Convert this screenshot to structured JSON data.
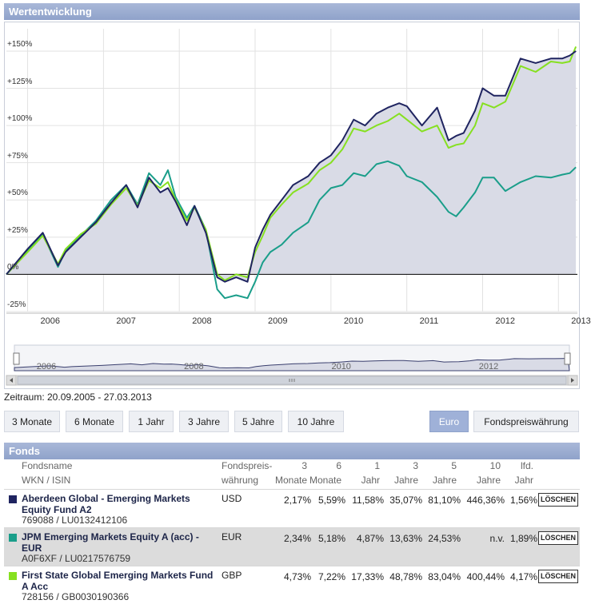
{
  "header": {
    "title": "Wertentwicklung"
  },
  "chart_data": {
    "type": "line",
    "ylim": [
      -25,
      165
    ],
    "yticks": [
      "+150%",
      "+125%",
      "+100%",
      "+75%",
      "+50%",
      "+25%",
      "0%",
      "-25%"
    ],
    "ytick_values": [
      150,
      125,
      100,
      75,
      50,
      25,
      0,
      -25
    ],
    "x_years": [
      "2006",
      "2007",
      "2008",
      "2009",
      "2010",
      "2011",
      "2012",
      "2013"
    ],
    "navigator_years": [
      "2006",
      "2008",
      "2010",
      "2012"
    ],
    "series": [
      {
        "name": "Aberdeen Global - Emerging Markets Equity Fund A2",
        "color": "#1f2460",
        "x": [
          2005.72,
          2006.0,
          2006.2,
          2006.4,
          2006.5,
          2006.7,
          2006.9,
          2007.1,
          2007.3,
          2007.45,
          2007.6,
          2007.75,
          2007.85,
          2007.95,
          2008.1,
          2008.2,
          2008.35,
          2008.5,
          2008.6,
          2008.75,
          2008.9,
          2009.0,
          2009.1,
          2009.2,
          2009.35,
          2009.5,
          2009.7,
          2009.85,
          2010.0,
          2010.15,
          2010.3,
          2010.45,
          2010.6,
          2010.75,
          2010.9,
          2011.0,
          2011.2,
          2011.4,
          2011.55,
          2011.65,
          2011.75,
          2011.9,
          2012.0,
          2012.15,
          2012.3,
          2012.5,
          2012.7,
          2012.9,
          2013.05,
          2013.15,
          2013.23
        ],
        "values": [
          0,
          17,
          28,
          6,
          15,
          25,
          35,
          48,
          60,
          45,
          65,
          55,
          58,
          49,
          33,
          46,
          28,
          -2,
          -5,
          -2,
          -5,
          18,
          30,
          40,
          50,
          60,
          66,
          75,
          80,
          90,
          104,
          100,
          108,
          112,
          115,
          113,
          100,
          112,
          90,
          93,
          95,
          110,
          125,
          120,
          120,
          145,
          142,
          145,
          145,
          147,
          150
        ]
      },
      {
        "name": "JPM Emerging Markets Equity A (acc) - EUR",
        "color": "#1a9e8a",
        "x": [
          2005.72,
          2006.0,
          2006.2,
          2006.4,
          2006.5,
          2006.7,
          2006.9,
          2007.1,
          2007.3,
          2007.45,
          2007.6,
          2007.75,
          2007.85,
          2007.95,
          2008.1,
          2008.2,
          2008.35,
          2008.5,
          2008.6,
          2008.75,
          2008.9,
          2009.0,
          2009.1,
          2009.2,
          2009.35,
          2009.5,
          2009.7,
          2009.85,
          2010.0,
          2010.15,
          2010.3,
          2010.45,
          2010.6,
          2010.75,
          2010.9,
          2011.0,
          2011.2,
          2011.4,
          2011.55,
          2011.65,
          2011.75,
          2011.9,
          2012.0,
          2012.15,
          2012.3,
          2012.5,
          2012.7,
          2012.9,
          2013.05,
          2013.15,
          2013.23
        ],
        "values": [
          0,
          16,
          27,
          5,
          16,
          26,
          36,
          50,
          60,
          47,
          68,
          60,
          70,
          52,
          38,
          46,
          30,
          -10,
          -16,
          -14,
          -16,
          -5,
          8,
          15,
          20,
          28,
          35,
          50,
          58,
          60,
          68,
          66,
          74,
          76,
          73,
          66,
          62,
          52,
          42,
          39,
          45,
          55,
          65,
          65,
          56,
          62,
          66,
          65,
          67,
          68,
          72
        ]
      },
      {
        "name": "First State Global Emerging Markets Fund A Acc",
        "color": "#86e020",
        "x": [
          2005.72,
          2006.0,
          2006.2,
          2006.4,
          2006.5,
          2006.7,
          2006.9,
          2007.1,
          2007.3,
          2007.45,
          2007.6,
          2007.75,
          2007.85,
          2007.95,
          2008.1,
          2008.2,
          2008.35,
          2008.5,
          2008.6,
          2008.75,
          2008.9,
          2009.0,
          2009.1,
          2009.2,
          2009.35,
          2009.5,
          2009.7,
          2009.85,
          2010.0,
          2010.15,
          2010.3,
          2010.45,
          2010.6,
          2010.75,
          2010.9,
          2011.0,
          2011.2,
          2011.4,
          2011.55,
          2011.65,
          2011.75,
          2011.9,
          2012.0,
          2012.15,
          2012.3,
          2012.5,
          2012.7,
          2012.9,
          2013.05,
          2013.15,
          2013.23
        ],
        "values": [
          0,
          15,
          26,
          7,
          17,
          27,
          34,
          47,
          58,
          46,
          63,
          58,
          62,
          50,
          36,
          45,
          30,
          0,
          -4,
          0,
          -2,
          15,
          26,
          38,
          47,
          55,
          61,
          70,
          75,
          84,
          98,
          96,
          100,
          103,
          108,
          104,
          96,
          100,
          85,
          87,
          88,
          100,
          115,
          112,
          116,
          140,
          136,
          143,
          142,
          143,
          153
        ]
      }
    ]
  },
  "zeitraum": "Zeitraum: 20.09.2005 - 27.03.2013",
  "range_buttons": [
    "3 Monate",
    "6 Monate",
    "1 Jahr",
    "3 Jahre",
    "5 Jahre",
    "10 Jahre"
  ],
  "currency_buttons": {
    "euro": "Euro",
    "fund": "Fondspreiswährung"
  },
  "fonds": {
    "title": "Fonds",
    "headers": {
      "name1": "Fondsname",
      "name2": "WKN / ISIN",
      "curr1": "Fondspreis-",
      "curr2": "währung",
      "m3a": "3",
      "m3b": "Monate",
      "m6a": "6",
      "m6b": "Monate",
      "y1a": "1",
      "y1b": "Jahr",
      "y3a": "3",
      "y3b": "Jahre",
      "y5a": "5",
      "y5b": "Jahre",
      "y10a": "10",
      "y10b": "Jahre",
      "lfda": "lfd.",
      "lfdb": "Jahr"
    },
    "rows": [
      {
        "name": "Aberdeen Global - Emerging Markets Equity Fund A2",
        "isin": "769088 / LU0132412106",
        "currency": "USD",
        "m3": "2,17%",
        "m6": "5,59%",
        "y1": "11,58%",
        "y3": "35,07%",
        "y5": "81,10%",
        "y10": "446,36%",
        "lfd": "1,56%",
        "color": "#1f2460",
        "delete": "LÖSCHEN"
      },
      {
        "name": "JPM Emerging Markets Equity A (acc) - EUR",
        "isin": "A0F6XF / LU0217576759",
        "currency": "EUR",
        "m3": "2,34%",
        "m6": "5,18%",
        "y1": "4,87%",
        "y3": "13,63%",
        "y5": "24,53%",
        "y10": "n.v.",
        "lfd": "1,89%",
        "color": "#1a9e8a",
        "delete": "LÖSCHEN"
      },
      {
        "name": "First State Global Emerging Markets Fund A Acc",
        "isin": "728156 / GB0030190366",
        "currency": "GBP",
        "m3": "4,73%",
        "m6": "7,22%",
        "y1": "17,33%",
        "y3": "48,78%",
        "y5": "83,04%",
        "y10": "400,44%",
        "lfd": "4,17%",
        "color": "#86e020",
        "delete": "LÖSCHEN"
      }
    ]
  }
}
